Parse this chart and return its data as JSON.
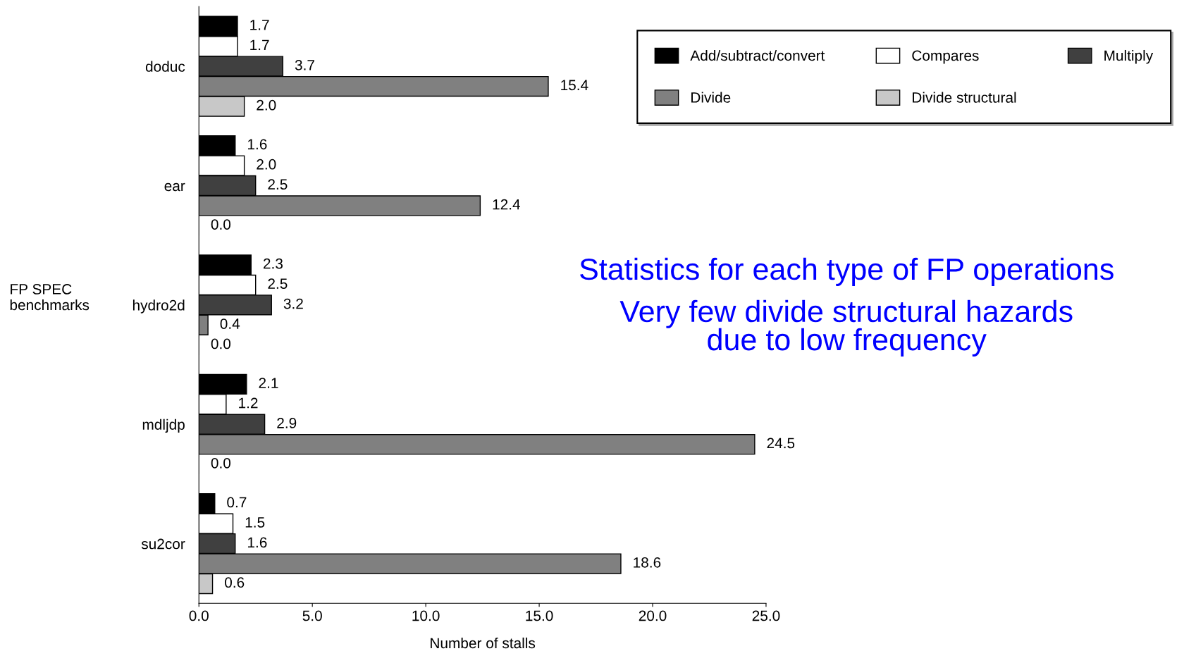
{
  "chart_data": {
    "type": "bar",
    "orientation": "horizontal",
    "xlabel": "Number of stalls",
    "ylabel": "FP SPEC\nbenchmarks",
    "categories": [
      "doduc",
      "ear",
      "hydro2d",
      "mdljdp",
      "su2cor"
    ],
    "series": [
      {
        "name": "Add/subtract/convert",
        "color": "#000000",
        "values": [
          1.7,
          1.6,
          2.3,
          2.1,
          0.7
        ],
        "value_labels": [
          "1.7",
          "1.6",
          "2.3",
          "2.1",
          "0.7"
        ]
      },
      {
        "name": "Compares",
        "color": "#ffffff",
        "values": [
          1.7,
          2,
          2.5,
          1.2,
          1.5
        ],
        "value_labels": [
          "1.7",
          "2.0",
          "2.5",
          "1.2",
          "1.5"
        ]
      },
      {
        "name": "Multiply",
        "color": "#404040",
        "values": [
          3.7,
          2.5,
          3.2,
          2.9,
          1.6
        ],
        "value_labels": [
          "3.7",
          "2.5",
          "3.2",
          "2.9",
          "1.6"
        ]
      },
      {
        "name": "Divide",
        "color": "#808080",
        "values": [
          15.4,
          12.4,
          0.4,
          24.5,
          18.6
        ],
        "value_labels": [
          "15.4",
          "12.4",
          "0.4",
          "24.5",
          "18.6"
        ]
      },
      {
        "name": "Divide structural",
        "color": "#c8c8c8",
        "values": [
          2,
          0,
          0,
          0,
          0.6
        ],
        "value_labels": [
          "2.0",
          "0.0",
          "0.0",
          "0.0",
          "0.6"
        ]
      }
    ],
    "xlim": [
      0,
      25
    ],
    "xticks": [
      {
        "value": 0,
        "label": "0.0"
      },
      {
        "value": 5,
        "label": "5.0"
      },
      {
        "value": 10,
        "label": "10.0"
      },
      {
        "value": 15,
        "label": "15.0"
      },
      {
        "value": 20,
        "label": "20.0"
      },
      {
        "value": 25,
        "label": "25.0"
      }
    ],
    "legend": "top right",
    "grid": false,
    "annotations": [
      "Statistics for each type of FP operations",
      "Very few divide structural hazards\ndue to low frequency"
    ]
  }
}
